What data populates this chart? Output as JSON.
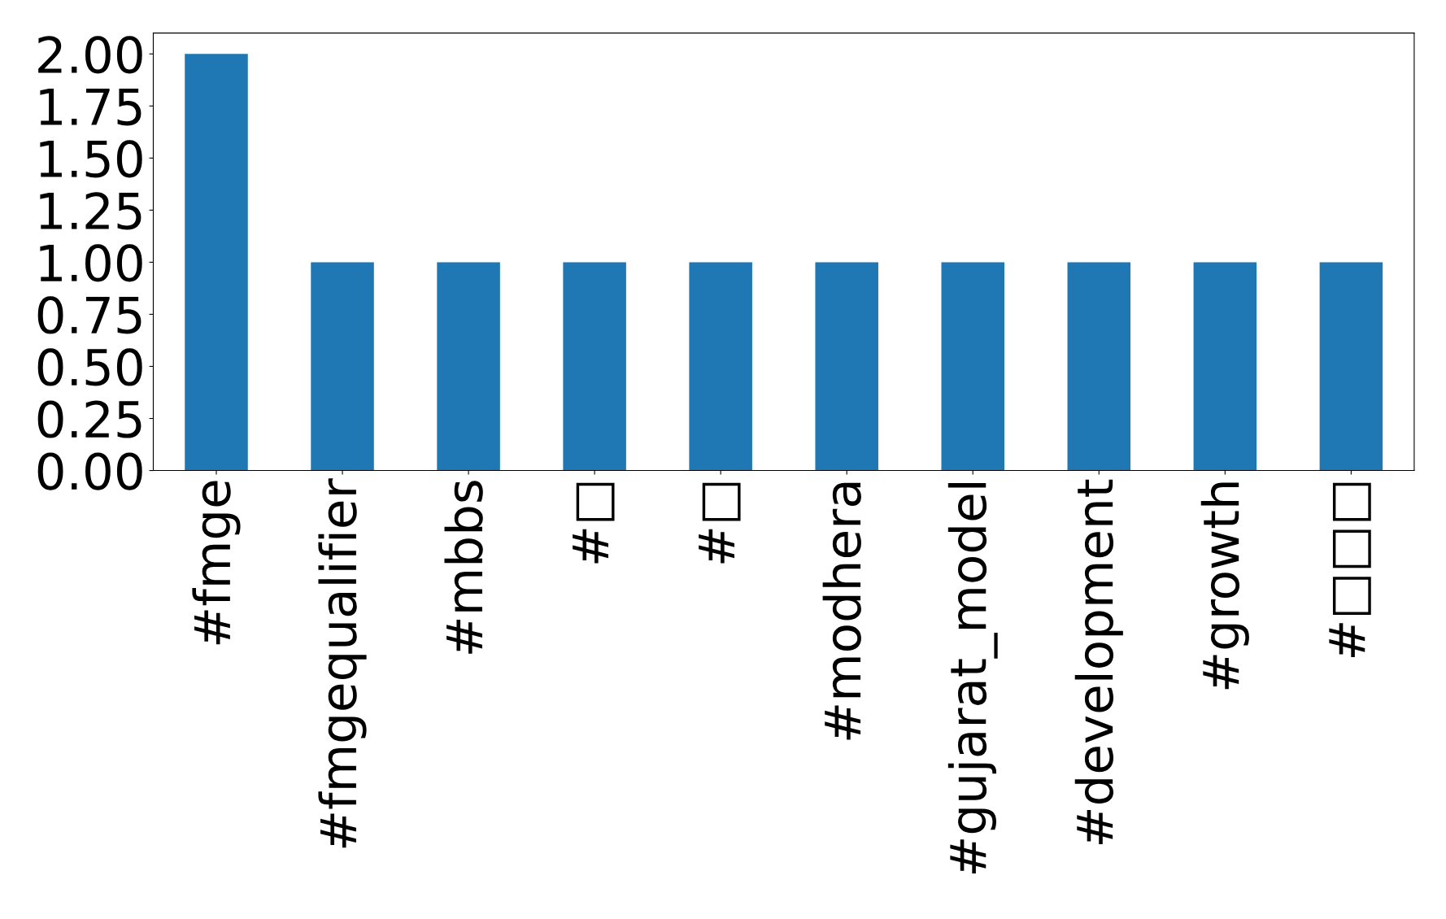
{
  "chart_data": {
    "type": "bar",
    "categories": [
      "#fmge",
      "#fmgequalifier",
      "#mbbs",
      "#□",
      "#□",
      "#modhera",
      "#gujarat_model",
      "#development",
      "#growth",
      "#□□□"
    ],
    "values": [
      2,
      1,
      1,
      1,
      1,
      1,
      1,
      1,
      1,
      1
    ],
    "color": "#1f77b4",
    "ylim": [
      0,
      2.1
    ],
    "yticks": [
      {
        "value": 0,
        "label": "0.00"
      },
      {
        "value": 0.25,
        "label": "0.25"
      },
      {
        "value": 0.5,
        "label": "0.50"
      },
      {
        "value": 0.75,
        "label": "0.75"
      },
      {
        "value": 1,
        "label": "1.00"
      },
      {
        "value": 1.25,
        "label": "1.25"
      },
      {
        "value": 1.5,
        "label": "1.50"
      },
      {
        "value": 1.75,
        "label": "1.75"
      },
      {
        "value": 2,
        "label": "2.00"
      }
    ],
    "grid": false,
    "legend": false
  }
}
